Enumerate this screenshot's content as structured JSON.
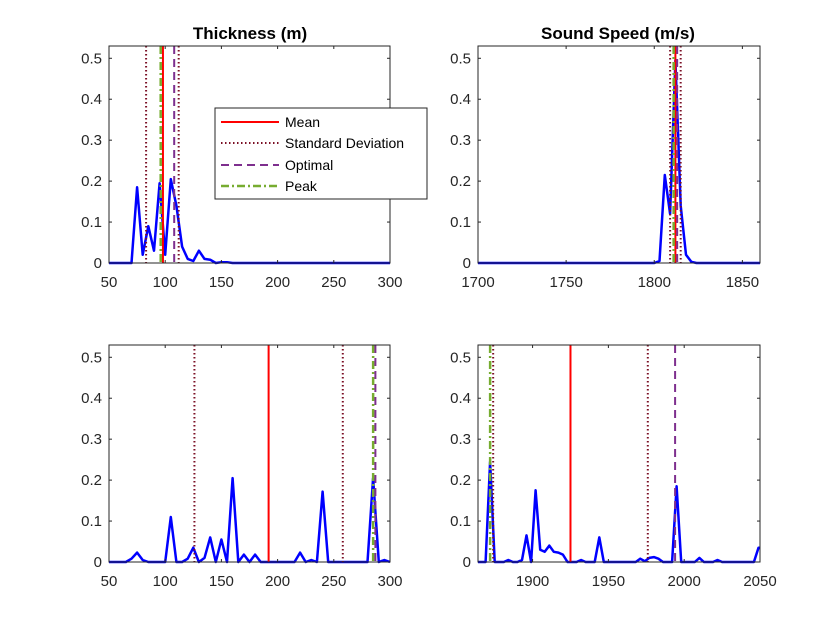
{
  "chart_data": [
    {
      "type": "line",
      "title": "Thickness (m)",
      "xlim": [
        50,
        300
      ],
      "ylim": [
        0,
        0.53
      ],
      "xticks": [
        "50",
        "100",
        "150",
        "200",
        "250",
        "300"
      ],
      "yticks": [
        "0",
        "0.1",
        "0.2",
        "0.3",
        "0.4",
        "0.5"
      ],
      "series": [
        {
          "color": "#0000ff",
          "x": [
            50,
            55,
            60,
            65,
            70,
            75,
            80,
            85,
            90,
            95,
            100,
            105,
            110,
            115,
            120,
            125,
            130,
            135,
            140,
            145,
            150,
            155,
            160,
            165,
            170,
            175,
            180,
            185,
            190,
            195,
            200,
            205,
            210,
            215,
            220,
            225,
            230,
            235,
            240,
            245,
            250,
            255,
            260,
            265,
            270,
            275,
            280,
            285,
            290,
            295,
            300
          ],
          "y": [
            0,
            0,
            0,
            0,
            0,
            0.185,
            0.02,
            0.09,
            0.03,
            0.195,
            0.02,
            0.205,
            0.14,
            0.04,
            0.01,
            0.005,
            0.03,
            0.01,
            0.008,
            0,
            0.002,
            0.002,
            0,
            0,
            0,
            0,
            0,
            0,
            0,
            0,
            0,
            0,
            0,
            0,
            0,
            0,
            0,
            0,
            0,
            0,
            0,
            0,
            0,
            0,
            0,
            0,
            0,
            0,
            0,
            0,
            0
          ]
        }
      ],
      "vlines": [
        {
          "kind": "std",
          "x": 83
        },
        {
          "kind": "std",
          "x": 112
        },
        {
          "kind": "mean",
          "x": 98
        },
        {
          "kind": "peak",
          "x": 96
        },
        {
          "kind": "optimal",
          "x": 108
        }
      ]
    },
    {
      "type": "line",
      "title": "Sound Speed (m/s)",
      "xlim": [
        1700,
        1860
      ],
      "ylim": [
        0,
        0.53
      ],
      "xticks": [
        "1700",
        "1750",
        "1800",
        "1850"
      ],
      "yticks": [
        "0",
        "0.1",
        "0.2",
        "0.3",
        "0.4",
        "0.5"
      ],
      "series": [
        {
          "color": "#0000ff",
          "x": [
            1700,
            1800,
            1803,
            1806,
            1809,
            1812,
            1815,
            1818,
            1821,
            1824,
            1860
          ],
          "y": [
            0,
            0,
            0.005,
            0.215,
            0.12,
            0.495,
            0.14,
            0.02,
            0.003,
            0,
            0
          ]
        }
      ],
      "vlines": [
        {
          "kind": "std",
          "x": 1809
        },
        {
          "kind": "std",
          "x": 1815
        },
        {
          "kind": "mean",
          "x": 1812
        },
        {
          "kind": "peak",
          "x": 1811
        },
        {
          "kind": "optimal",
          "x": 1813
        }
      ]
    },
    {
      "type": "line",
      "xlim": [
        50,
        300
      ],
      "ylim": [
        0,
        0.53
      ],
      "xticks": [
        "50",
        "100",
        "150",
        "200",
        "250",
        "300"
      ],
      "yticks": [
        "0",
        "0.1",
        "0.2",
        "0.3",
        "0.4",
        "0.5"
      ],
      "series": [
        {
          "color": "#0000ff",
          "x": [
            50,
            55,
            60,
            65,
            70,
            75,
            80,
            85,
            90,
            95,
            100,
            105,
            110,
            115,
            120,
            125,
            130,
            135,
            140,
            145,
            150,
            155,
            160,
            165,
            170,
            175,
            180,
            185,
            190,
            195,
            200,
            205,
            210,
            215,
            220,
            225,
            230,
            235,
            240,
            245,
            250,
            255,
            260,
            265,
            270,
            275,
            280,
            285,
            290,
            295,
            300
          ],
          "y": [
            0,
            0,
            0,
            0,
            0.008,
            0.023,
            0.005,
            0,
            0,
            0,
            0,
            0.11,
            0,
            0,
            0.008,
            0.035,
            0,
            0.01,
            0.06,
            0,
            0.055,
            0,
            0.205,
            0,
            0.018,
            0,
            0.018,
            0,
            0,
            0,
            0,
            0,
            0,
            0,
            0.023,
            0,
            0.005,
            0,
            0.172,
            0,
            0,
            0,
            0,
            0,
            0,
            0,
            0,
            0.205,
            0,
            0.005,
            0
          ]
        }
      ],
      "vlines": [
        {
          "kind": "std",
          "x": 126
        },
        {
          "kind": "std",
          "x": 258
        },
        {
          "kind": "mean",
          "x": 192
        },
        {
          "kind": "peak",
          "x": 285
        },
        {
          "kind": "optimal",
          "x": 287
        }
      ]
    },
    {
      "type": "line",
      "xlim": [
        1864,
        2050
      ],
      "ylim": [
        0,
        0.53
      ],
      "xticks": [
        "1900",
        "1950",
        "2000",
        "2050"
      ],
      "yticks": [
        "0",
        "0.1",
        "0.2",
        "0.3",
        "0.4",
        "0.5"
      ],
      "series": [
        {
          "color": "#0000ff",
          "x": [
            1864,
            1866,
            1869,
            1872,
            1875,
            1878,
            1881,
            1884,
            1887,
            1890,
            1893,
            1896,
            1899,
            1902,
            1905,
            1908,
            1911,
            1914,
            1917,
            1920,
            1923,
            1926,
            1929,
            1932,
            1935,
            1938,
            1941,
            1944,
            1947,
            1950,
            1953,
            1956,
            1959,
            1962,
            1965,
            1968,
            1971,
            1974,
            1977,
            1980,
            1983,
            1986,
            1989,
            1992,
            1995,
            1998,
            2001,
            2004,
            2007,
            2010,
            2013,
            2016,
            2019,
            2022,
            2025,
            2028,
            2031,
            2034,
            2037,
            2040,
            2043,
            2046,
            2049,
            2050
          ],
          "y": [
            0,
            0,
            0,
            0.245,
            0,
            0,
            0,
            0.005,
            0,
            0,
            0.005,
            0.065,
            0,
            0.175,
            0.03,
            0.025,
            0.04,
            0.025,
            0.023,
            0.018,
            0,
            0,
            0,
            0.005,
            0,
            0,
            0,
            0.06,
            0,
            0,
            0,
            0,
            0,
            0,
            0,
            0,
            0.008,
            0.002,
            0.01,
            0.012,
            0.008,
            0,
            0,
            0,
            0.185,
            0,
            0,
            0,
            0,
            0.01,
            0,
            0,
            0,
            0.005,
            0,
            0,
            0,
            0,
            0,
            0,
            0,
            0,
            0.035,
            0.035
          ]
        }
      ],
      "vlines": [
        {
          "kind": "std",
          "x": 1874
        },
        {
          "kind": "std",
          "x": 1976
        },
        {
          "kind": "mean",
          "x": 1925
        },
        {
          "kind": "peak",
          "x": 1872
        },
        {
          "kind": "optimal",
          "x": 1994
        }
      ]
    }
  ],
  "legend": {
    "placement": "inside top-right of first subplot",
    "entries": [
      {
        "kind": "mean",
        "label": "Mean",
        "color": "#ff0000",
        "style": "solid"
      },
      {
        "kind": "std",
        "label": "Standard Deviation",
        "color": "#7b0f24",
        "style": "dotted"
      },
      {
        "kind": "optimal",
        "label": "Optimal",
        "color": "#7e2f8e",
        "style": "dashed"
      },
      {
        "kind": "peak",
        "label": "Peak",
        "color": "#77ac30",
        "style": "dash-dot"
      }
    ]
  },
  "colors": {
    "axes": "#262626",
    "data_line": "#0000ff"
  }
}
